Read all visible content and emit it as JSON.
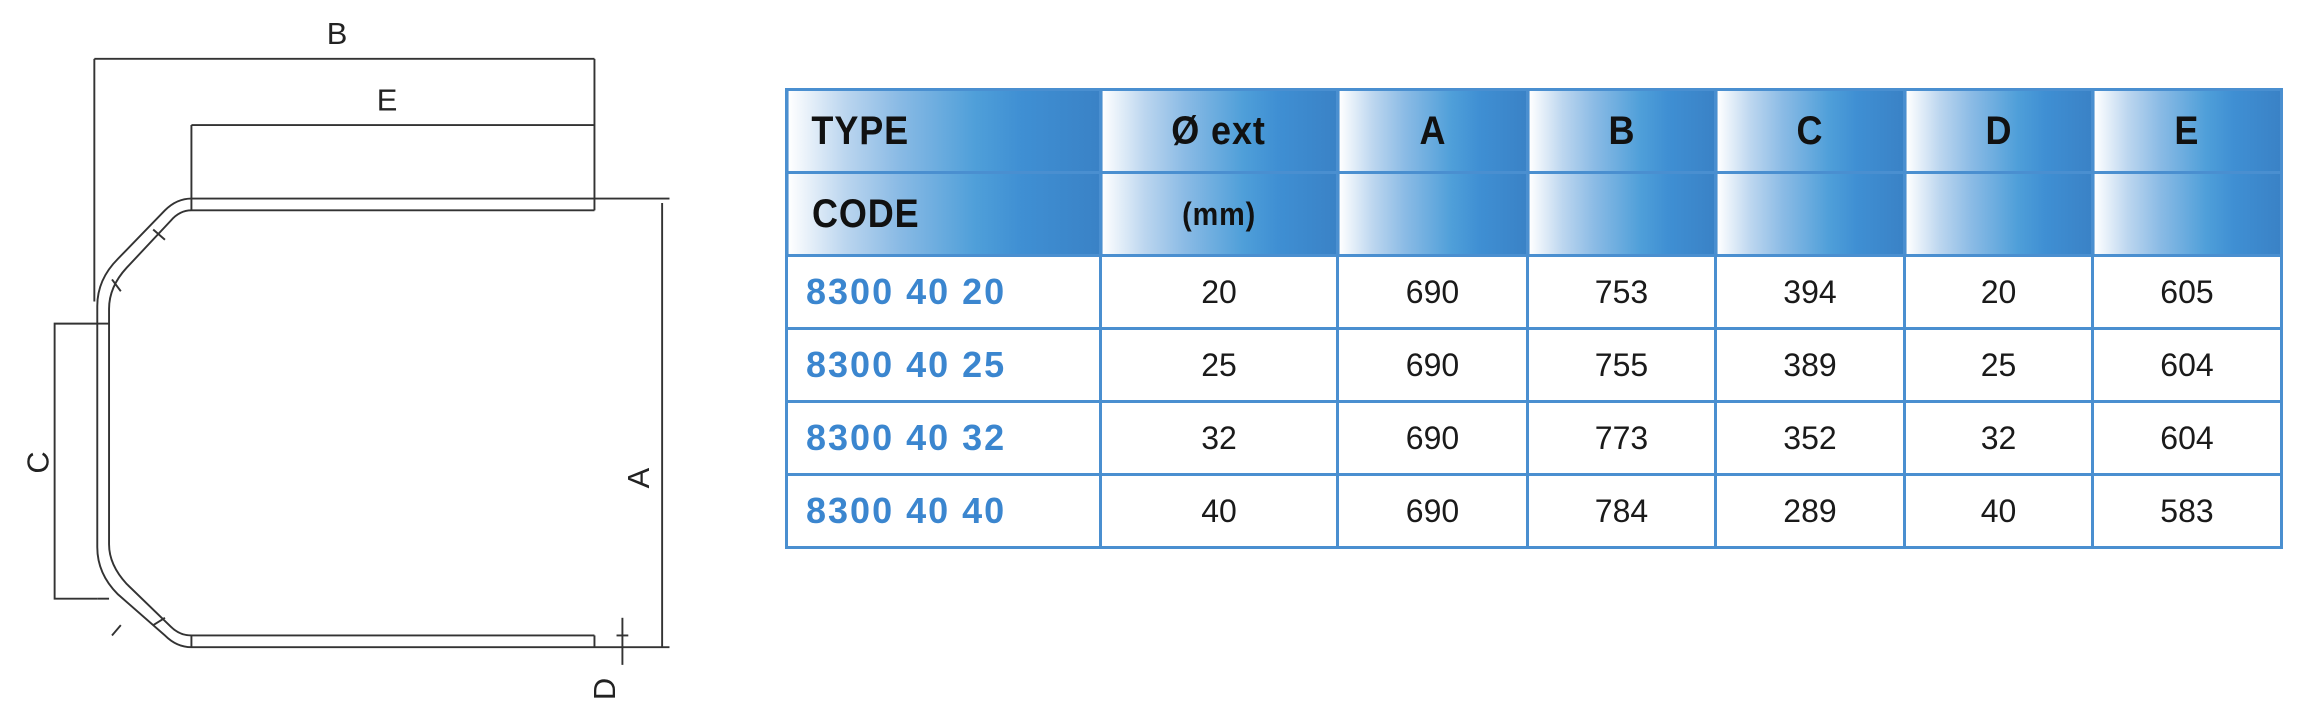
{
  "drawing": {
    "labels": {
      "A": "A",
      "B": "B",
      "C": "C",
      "D": "D",
      "E": "E"
    }
  },
  "table": {
    "header_row1": [
      "TYPE",
      "Ø ext",
      "A",
      "B",
      "C",
      "D",
      "E"
    ],
    "header_row2": [
      "CODE",
      "(mm)",
      "",
      "",
      "",
      "",
      ""
    ],
    "rows": [
      [
        "8300 40 20",
        "20",
        "690",
        "753",
        "394",
        "20",
        "605"
      ],
      [
        "8300 40 25",
        "25",
        "690",
        "755",
        "389",
        "25",
        "604"
      ],
      [
        "8300 40 32",
        "32",
        "690",
        "773",
        "352",
        "32",
        "604"
      ],
      [
        "8300 40 40",
        "40",
        "690",
        "784",
        "289",
        "40",
        "583"
      ]
    ],
    "colors": {
      "border": "#4a8fd0",
      "code_text": "#3b86cf",
      "header_gradient_end": "#3a82c6"
    }
  }
}
